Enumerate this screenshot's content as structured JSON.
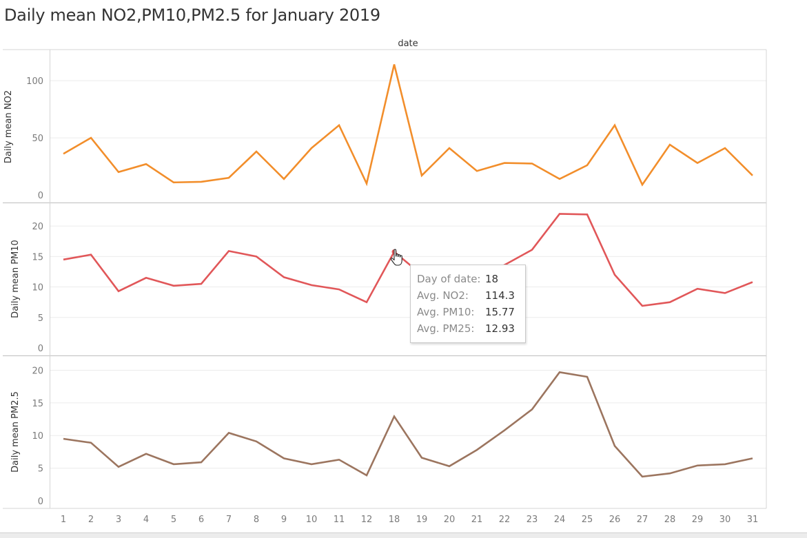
{
  "title": "Daily mean NO2,PM10,PM2.5 for January 2019",
  "chart_data": {
    "type": "line",
    "column_header": "date",
    "categories": [
      "1",
      "2",
      "3",
      "4",
      "5",
      "6",
      "7",
      "8",
      "9",
      "10",
      "11",
      "12",
      "18",
      "19",
      "20",
      "21",
      "22",
      "23",
      "24",
      "25",
      "26",
      "27",
      "28",
      "29",
      "30",
      "31"
    ],
    "panels": [
      {
        "ylabel": "Daily mean NO2",
        "ylim": [
          0,
          120
        ],
        "yticks": [
          0,
          50,
          100
        ],
        "color": "#f28e2b",
        "values": [
          36,
          50,
          20,
          27,
          11,
          11.5,
          15,
          38,
          14,
          41,
          61,
          10,
          114.3,
          17,
          41,
          21,
          28,
          27.5,
          14,
          26,
          61,
          9,
          44,
          28,
          41,
          17
        ]
      },
      {
        "ylabel": "Daily mean PM10",
        "ylim": [
          0,
          22.5
        ],
        "yticks": [
          0,
          5,
          10,
          15,
          20
        ],
        "color": "#e15759",
        "values": [
          14.5,
          15.3,
          9.3,
          11.5,
          10.2,
          10.5,
          15.9,
          15.0,
          11.6,
          10.3,
          9.6,
          7.5,
          15.77,
          12.0,
          11.5,
          12.2,
          13.6,
          16.1,
          22.0,
          21.9,
          12.0,
          6.9,
          7.5,
          9.7,
          9.0,
          10.8
        ]
      },
      {
        "ylabel": "Daily mean PM2.5",
        "ylim": [
          0,
          21
        ],
        "yticks": [
          0,
          5,
          10,
          15,
          20
        ],
        "color": "#9c755f",
        "values": [
          9.5,
          8.9,
          5.2,
          7.2,
          5.6,
          5.9,
          10.4,
          9.1,
          6.5,
          5.6,
          6.3,
          3.9,
          12.93,
          6.6,
          5.3,
          7.8,
          10.8,
          14.0,
          19.7,
          19.0,
          8.4,
          3.7,
          4.2,
          5.4,
          5.6,
          6.5
        ]
      }
    ],
    "grid": true,
    "highlight_index": 12
  },
  "tooltip": {
    "rows": [
      {
        "label": "Day of date:",
        "value": "18"
      },
      {
        "label": "Avg. NO2:",
        "value": "114.3"
      },
      {
        "label": "Avg. PM10:",
        "value": "15.77"
      },
      {
        "label": "Avg. PM25:",
        "value": "12.93"
      }
    ]
  },
  "cursor_icon": "hand-pointer-icon"
}
